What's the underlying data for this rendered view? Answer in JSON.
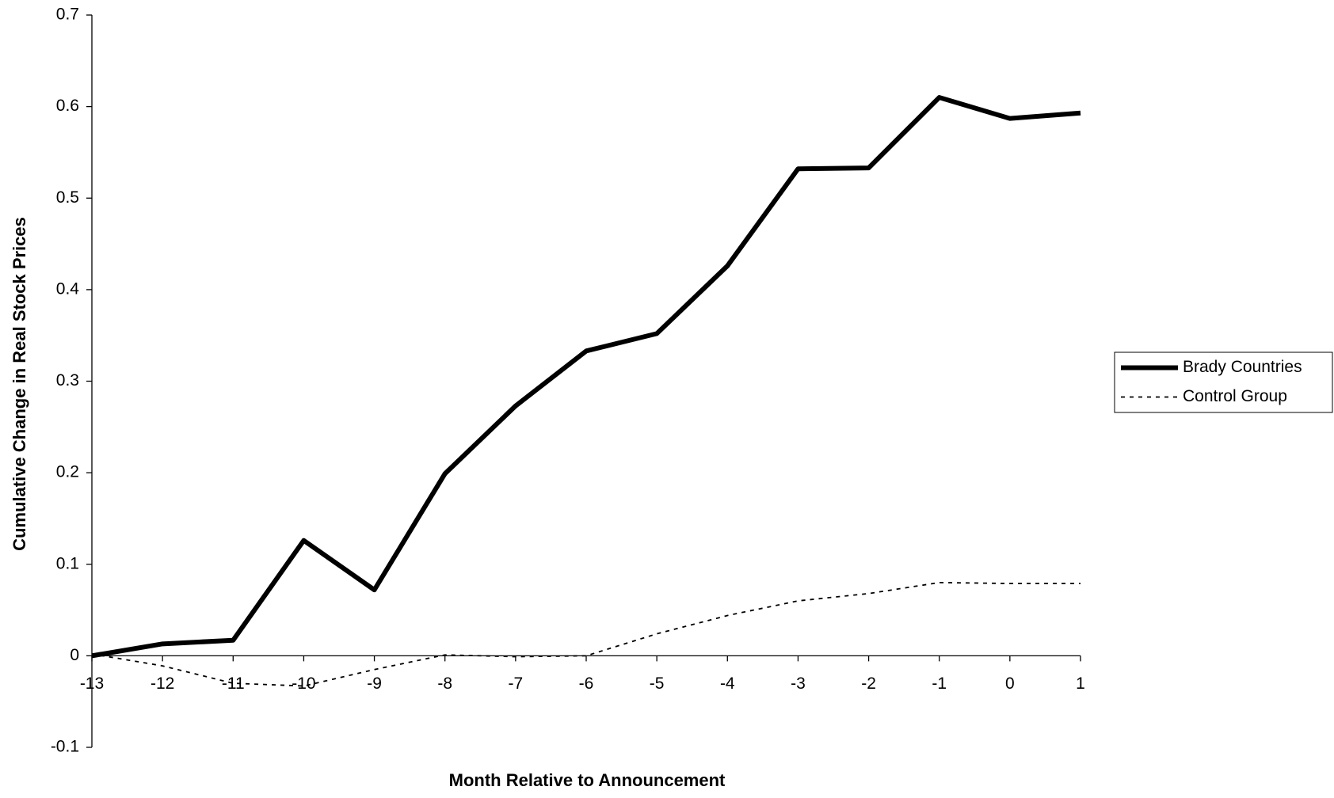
{
  "chart_data": {
    "type": "line",
    "x_label": "Month Relative to Announcement",
    "y_label": "Cumulative Change in Real Stock Prices",
    "x": [
      -13,
      -12,
      -11,
      -10,
      -9,
      -8,
      -7,
      -6,
      -5,
      -4,
      -3,
      -2,
      -1,
      0,
      1
    ],
    "series": [
      {
        "name": "Brady Countries",
        "color": "#000000",
        "values": [
          0,
          0.013,
          0.017,
          0.126,
          0.072,
          0.199,
          0.273,
          0.333,
          0.352,
          0.426,
          0.532,
          0.533,
          0.61,
          0.587,
          0.593
        ]
      },
      {
        "name": "Control Group",
        "color": "#000000",
        "values": [
          0.002,
          -0.011,
          -0.03,
          -0.033,
          -0.015,
          0.001,
          -0.001,
          0.0,
          0.024,
          0.044,
          0.06,
          0.068,
          0.08,
          0.079,
          0.079
        ]
      }
    ],
    "xlim": [
      -13,
      1
    ],
    "xticks": [
      -13,
      -12,
      -11,
      -10,
      -9,
      -8,
      -7,
      -6,
      -5,
      -4,
      -3,
      -2,
      -1,
      0,
      1
    ],
    "ylim": [
      -0.1,
      0.7
    ],
    "yticks": [
      -0.1,
      0,
      0.1,
      0.2,
      0.3,
      0.4,
      0.5,
      0.6,
      0.7
    ],
    "grid": false,
    "legend": "right"
  }
}
